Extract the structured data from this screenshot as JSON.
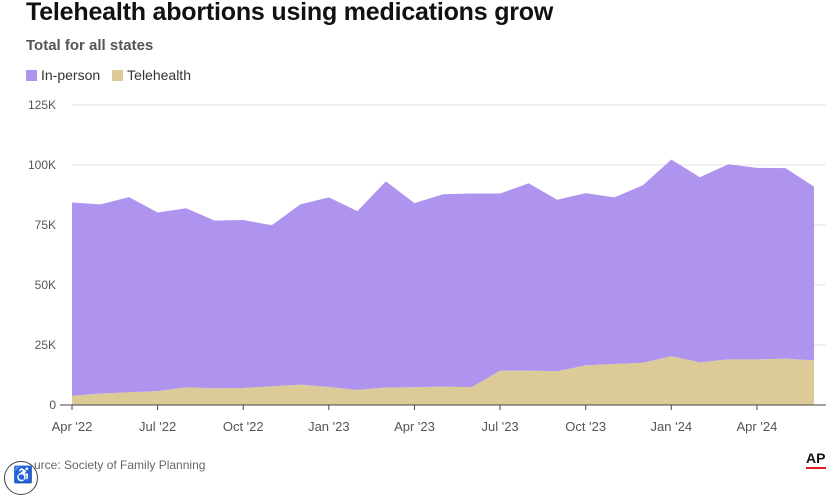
{
  "title": "Telehealth abortions using medications grow",
  "subtitle": "Total for all states",
  "source": "urce: Society of Family Planning",
  "logo_text": "AP",
  "colors": {
    "in_person": "#ae94ee",
    "telehealth": "#dccb97",
    "grid": "#e6e6e6",
    "axis": "#444444",
    "tick_text": "#555555"
  },
  "chart_data": {
    "type": "area",
    "stacked": true,
    "title": "Telehealth abortions using medications grow",
    "subtitle": "Total for all states",
    "x": [
      "2022-04",
      "2022-05",
      "2022-06",
      "2022-07",
      "2022-08",
      "2022-09",
      "2022-10",
      "2022-11",
      "2022-12",
      "2023-01",
      "2023-02",
      "2023-03",
      "2023-04",
      "2023-05",
      "2023-06",
      "2023-07",
      "2023-08",
      "2023-09",
      "2023-10",
      "2023-11",
      "2023-12",
      "2024-01",
      "2024-02",
      "2024-03",
      "2024-04",
      "2024-05",
      "2024-06"
    ],
    "x_ticks": [
      {
        "x": "2022-04",
        "label": "Apr '22"
      },
      {
        "x": "2022-07",
        "label": "Jul '22"
      },
      {
        "x": "2022-10",
        "label": "Oct '22"
      },
      {
        "x": "2023-01",
        "label": "Jan '23"
      },
      {
        "x": "2023-04",
        "label": "Apr '23"
      },
      {
        "x": "2023-07",
        "label": "Jul '23"
      },
      {
        "x": "2023-10",
        "label": "Oct '23"
      },
      {
        "x": "2024-01",
        "label": "Jan '24"
      },
      {
        "x": "2024-04",
        "label": "Apr '24"
      }
    ],
    "y_ticks": [
      {
        "value": 0,
        "label": "0"
      },
      {
        "value": 25000,
        "label": "25K"
      },
      {
        "value": 50000,
        "label": "50K"
      },
      {
        "value": 75000,
        "label": "75K"
      },
      {
        "value": 100000,
        "label": "100K"
      },
      {
        "value": 125000,
        "label": "125K"
      }
    ],
    "ylim": [
      0,
      125000
    ],
    "grid": true,
    "legend_position": "top-left",
    "series": [
      {
        "name": "Telehealth",
        "color": "#dccb97",
        "values": [
          3800,
          4800,
          5300,
          5800,
          7400,
          7000,
          7100,
          7800,
          8500,
          7500,
          6300,
          7300,
          7400,
          7700,
          7400,
          14300,
          14300,
          14100,
          16500,
          17100,
          17600,
          20300,
          17800,
          19000,
          19000,
          19300,
          18600
        ]
      },
      {
        "name": "In-person",
        "color": "#ae94ee",
        "values": [
          80600,
          78800,
          81300,
          74400,
          74600,
          69800,
          70000,
          67100,
          75100,
          79000,
          74500,
          85900,
          76700,
          80100,
          80700,
          73800,
          78100,
          71400,
          71800,
          69400,
          73900,
          82000,
          77100,
          81300,
          79800,
          79400,
          72400
        ]
      }
    ]
  }
}
